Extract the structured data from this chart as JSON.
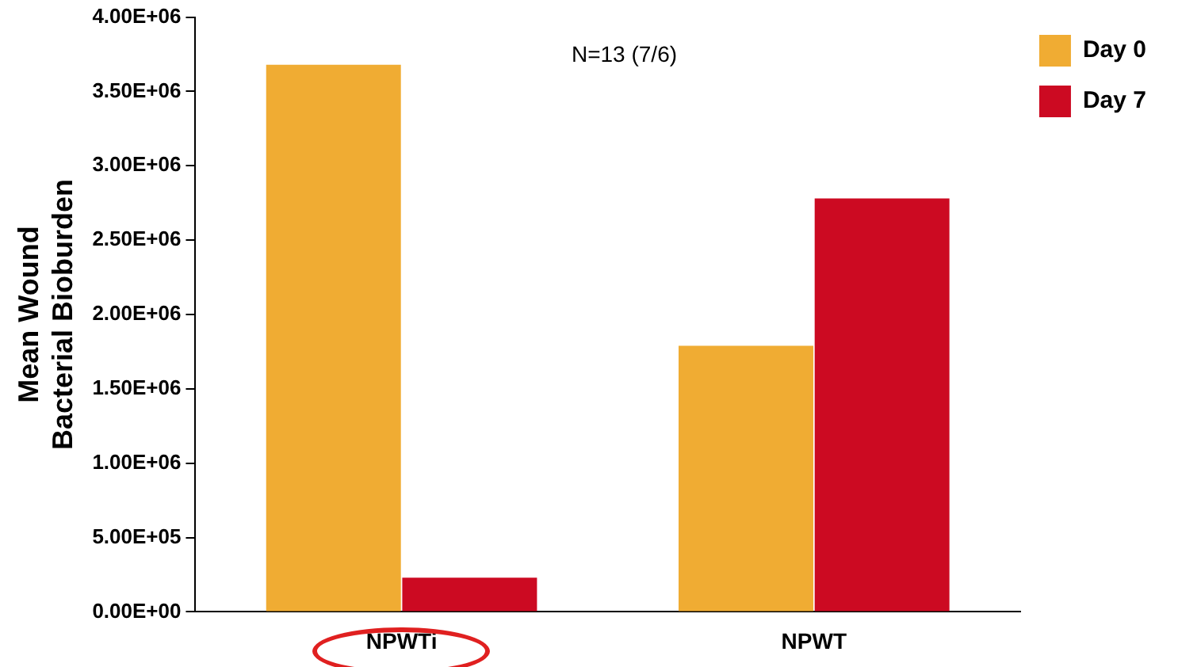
{
  "chart_data": {
    "type": "bar",
    "ylabel": "Mean Wound\nBacterial Bioburden",
    "categories": [
      "NPWTi",
      "NPWT"
    ],
    "series": [
      {
        "name": "Day 0",
        "color": "#f0ac33",
        "values": [
          3680000,
          1790000
        ]
      },
      {
        "name": "Day 7",
        "color": "#cc0a22",
        "values": [
          230000,
          2780000
        ]
      }
    ],
    "ylim": [
      0,
      4000000
    ],
    "yticks": [
      {
        "value": 0,
        "label": "0.00E+00"
      },
      {
        "value": 500000,
        "label": "5.00E+05"
      },
      {
        "value": 1000000,
        "label": "1.00E+06"
      },
      {
        "value": 1500000,
        "label": "1.50E+06"
      },
      {
        "value": 2000000,
        "label": "2.00E+06"
      },
      {
        "value": 2500000,
        "label": "2.50E+06"
      },
      {
        "value": 3000000,
        "label": "3.00E+06"
      },
      {
        "value": 3500000,
        "label": "3.50E+06"
      },
      {
        "value": 4000000,
        "label": "4.00E+06"
      }
    ],
    "annotations": [
      "N=13 (7/6)"
    ],
    "grid": false,
    "legend": "top right"
  }
}
